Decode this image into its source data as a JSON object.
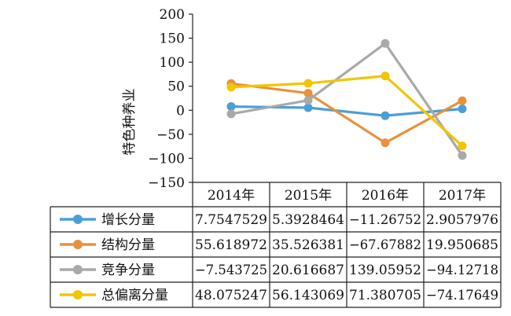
{
  "chart_data": {
    "type": "line",
    "ylabel": "特色种养业",
    "y_ticks": [
      "200",
      "150",
      "100",
      "50",
      "0",
      "−50",
      "−100",
      "−150"
    ],
    "ylim": [
      -150,
      200
    ],
    "categories": [
      "2014年",
      "2015年",
      "2016年",
      "2017年"
    ],
    "series": [
      {
        "name": "增长分量",
        "color": "#4a9fd8",
        "values": [
          7.7547529,
          5.3928464,
          -11.26752,
          2.9057976
        ],
        "labels": [
          "7.7547529",
          "5.3928464",
          "−11.26752",
          "2.9057976"
        ]
      },
      {
        "name": "结构分量",
        "color": "#e8913d",
        "values": [
          55.618972,
          35.526381,
          -67.67882,
          19.950685
        ],
        "labels": [
          "55.618972",
          "35.526381",
          "−67.67882",
          "19.950685"
        ]
      },
      {
        "name": "竞争分量",
        "color": "#a9a9a9",
        "values": [
          -7.543725,
          20.616687,
          139.05952,
          -94.12718
        ],
        "labels": [
          "−7.543725",
          "20.616687",
          "139.05952",
          "−94.12718"
        ]
      },
      {
        "name": "总偏离分量",
        "color": "#f2c500",
        "values": [
          48.075247,
          56.143069,
          71.380705,
          -74.17649
        ],
        "labels": [
          "48.075247",
          "56.143069",
          "71.380705",
          "−74.17649"
        ]
      }
    ],
    "grid": false,
    "legend": "data-table"
  }
}
